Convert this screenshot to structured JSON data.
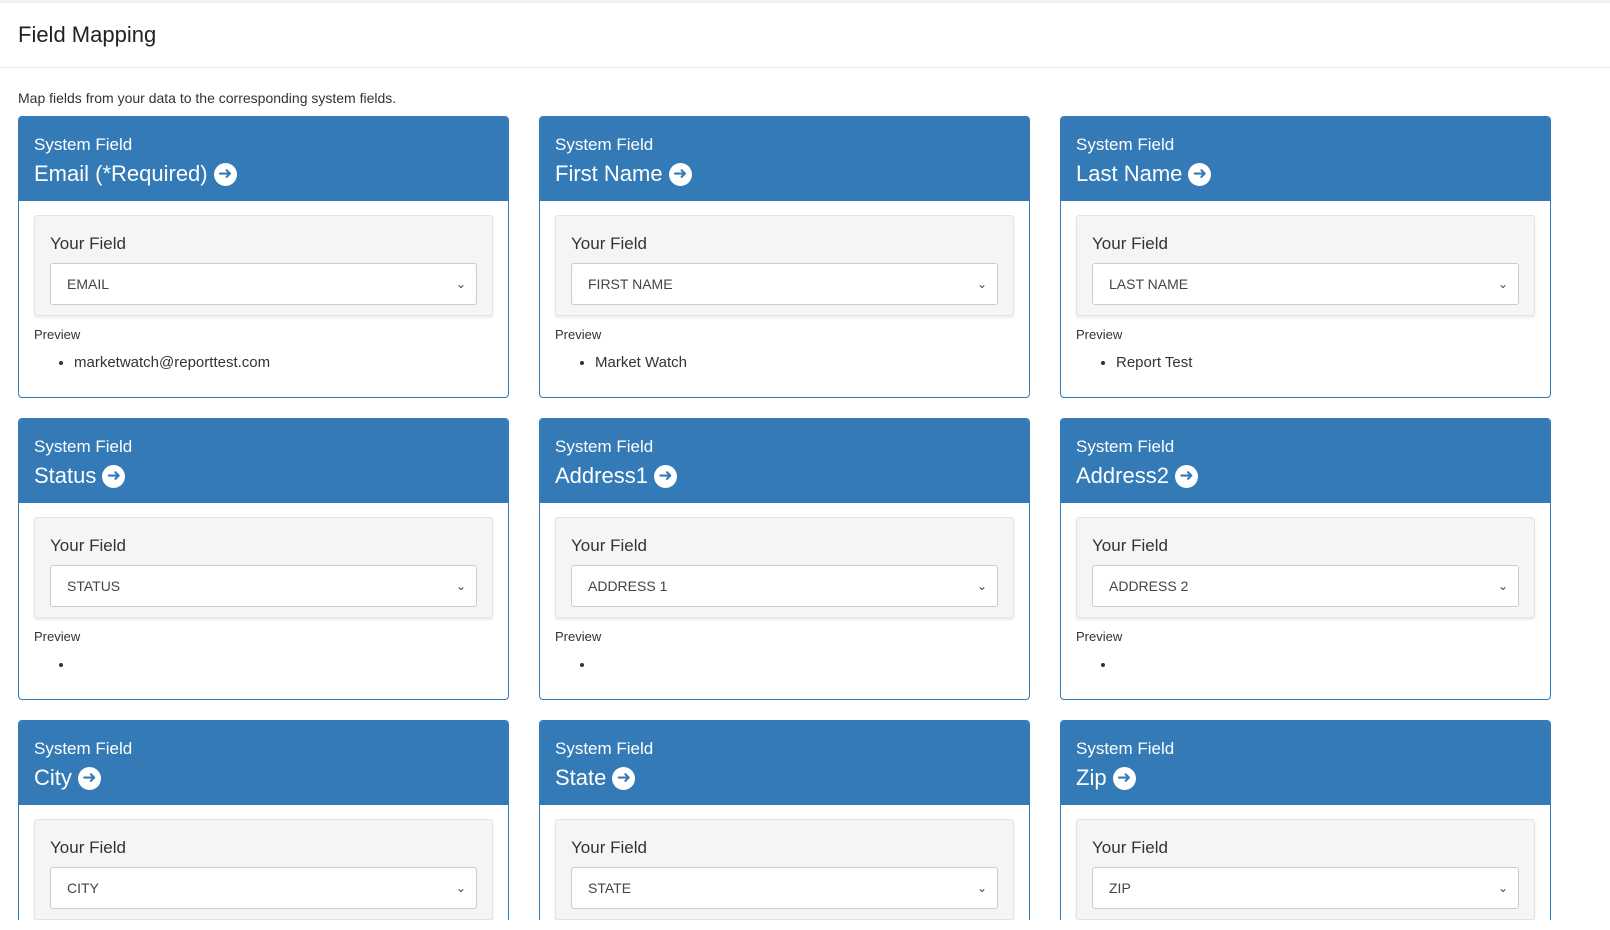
{
  "page": {
    "title": "Field Mapping",
    "description": "Map fields from your data to the corresponding system fields."
  },
  "labels": {
    "system_field": "System Field",
    "your_field": "Your Field",
    "preview": "Preview"
  },
  "colors": {
    "accent": "#337ab7"
  },
  "icons": {
    "header": "circle-arrow-right-icon",
    "select": "chevron-down-icon"
  },
  "cards": [
    {
      "system": "Email (*Required)",
      "selected": "EMAIL",
      "preview": "marketwatch@reporttest.com"
    },
    {
      "system": "First Name",
      "selected": "FIRST NAME",
      "preview": "Market Watch"
    },
    {
      "system": "Last Name",
      "selected": "LAST NAME",
      "preview": "Report Test"
    },
    {
      "system": "Status",
      "selected": "STATUS",
      "preview": ""
    },
    {
      "system": "Address1",
      "selected": "ADDRESS 1",
      "preview": ""
    },
    {
      "system": "Address2",
      "selected": "ADDRESS 2",
      "preview": ""
    },
    {
      "system": "City",
      "selected": "CITY",
      "preview": ""
    },
    {
      "system": "State",
      "selected": "STATE",
      "preview": ""
    },
    {
      "system": "Zip",
      "selected": "ZIP",
      "preview": ""
    }
  ]
}
